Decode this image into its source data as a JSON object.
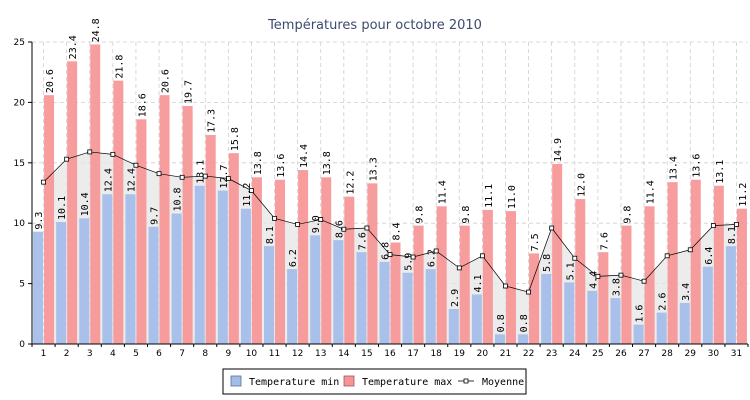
{
  "chart_data": {
    "type": "bar",
    "title": "Températures pour octobre 2010",
    "xlabel": "",
    "ylabel": "",
    "ylim": [
      0,
      25
    ],
    "yticks": [
      0,
      5,
      10,
      15,
      20,
      25
    ],
    "grid": true,
    "legend_position": "bottom-center",
    "categories": [
      "1",
      "2",
      "3",
      "4",
      "5",
      "6",
      "7",
      "8",
      "9",
      "10",
      "11",
      "12",
      "13",
      "14",
      "15",
      "16",
      "17",
      "18",
      "19",
      "20",
      "21",
      "22",
      "23",
      "24",
      "25",
      "26",
      "27",
      "28",
      "29",
      "30",
      "31"
    ],
    "series": [
      {
        "name": "Temperature min",
        "type": "bar",
        "color": "#a3bde9",
        "values": [
          9.3,
          10.1,
          10.4,
          12.4,
          12.4,
          9.7,
          10.8,
          13.1,
          12.7,
          11.2,
          8.1,
          6.2,
          9.0,
          8.6,
          7.6,
          6.8,
          5.9,
          6.2,
          2.9,
          4.1,
          0.8,
          0.8,
          5.8,
          5.1,
          4.4,
          3.8,
          1.6,
          2.6,
          3.4,
          6.4,
          8.1
        ],
        "labels": [
          "9.3",
          "10.1",
          "10.4",
          "12.4",
          "12.4",
          "9.7",
          "10.8",
          "13.1",
          "12.7",
          "11.2",
          "8.1",
          "6.2",
          "9.0",
          "8.6",
          "7.6",
          "6.8",
          "5.9",
          "6.2",
          "2.9",
          "4.1",
          "0.8",
          "0.8",
          "5.8",
          "5.1",
          "4.4",
          "3.8",
          "1.6",
          "2.6",
          "3.4",
          "6.4",
          "8.1"
        ]
      },
      {
        "name": "Temperature max",
        "type": "bar",
        "color": "#f79596",
        "values": [
          20.6,
          23.4,
          24.8,
          21.8,
          18.6,
          20.6,
          19.7,
          17.3,
          15.8,
          13.8,
          13.6,
          14.4,
          13.8,
          12.2,
          13.3,
          8.4,
          9.8,
          11.4,
          9.8,
          11.1,
          11.0,
          7.5,
          14.9,
          12.0,
          7.6,
          9.8,
          11.4,
          13.4,
          13.6,
          13.1,
          11.2
        ],
        "labels": [
          "20.6",
          "23.4",
          "24.8",
          "21.8",
          "18.6",
          "20.6",
          "19.7",
          "17.3",
          "15.8",
          "13.8",
          "13.6",
          "14.4",
          "13.8",
          "12.2",
          "13.3",
          "8.4",
          "9.8",
          "11.4",
          "9.8",
          "11.1",
          "11.0",
          "7.5",
          "14.9",
          "12.0",
          "7.6",
          "9.8",
          "11.4",
          "13.4",
          "13.6",
          "13.1",
          "11.2"
        ]
      },
      {
        "name": "Moyenne",
        "type": "line",
        "color": "#000000",
        "fill": "#e6e6e6",
        "values": [
          13.4,
          15.3,
          15.9,
          15.7,
          14.8,
          14.1,
          13.8,
          13.9,
          13.7,
          12.7,
          10.4,
          9.9,
          10.3,
          9.5,
          9.6,
          7.4,
          7.2,
          7.7,
          6.3,
          7.3,
          4.8,
          4.3,
          9.6,
          7.1,
          5.6,
          5.7,
          5.2,
          7.3,
          7.8,
          9.8,
          9.9
        ]
      }
    ]
  }
}
